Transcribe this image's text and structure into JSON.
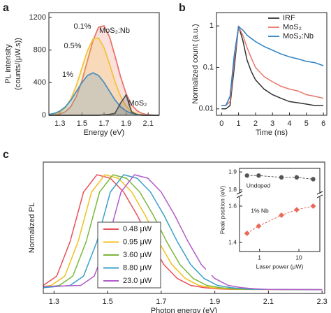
{
  "chart_data": [
    {
      "type": "area",
      "panel_label": "a",
      "xlabel": "Energy (eV)",
      "ylabel": [
        "PL intensity",
        "(counts/(μW.s))"
      ],
      "annotation": "MoS₂:Nb",
      "x": [
        1.2,
        1.25,
        1.3,
        1.35,
        1.4,
        1.45,
        1.5,
        1.55,
        1.6,
        1.65,
        1.7,
        1.75,
        1.8,
        1.85,
        1.9,
        1.95,
        2.0,
        2.05,
        2.1,
        2.15,
        2.2
      ],
      "series": [
        {
          "name": "0.1%",
          "color": "#e8756a",
          "values": [
            1,
            5,
            16,
            44,
            109,
            233,
            425,
            673,
            917,
            1081,
            1097,
            960,
            725,
            472,
            266,
            128,
            54,
            19,
            6,
            2,
            0
          ]
        },
        {
          "name": "0.5%",
          "color": "#f2c33c",
          "values": [
            4,
            14,
            38,
            94,
            202,
            368,
            582,
            793,
            935,
            949,
            830,
            627,
            408,
            230,
            111,
            47,
            16,
            5,
            2,
            0,
            0
          ]
        },
        {
          "name": "1%",
          "color": "#4a90c0",
          "values": [
            9,
            23,
            52,
            105,
            187,
            294,
            403,
            488,
            520,
            488,
            403,
            294,
            187,
            105,
            52,
            23,
            9,
            3,
            1,
            0,
            0
          ]
        },
        {
          "name": "MoS₂",
          "color": "#555555",
          "values": [
            0,
            0,
            0,
            0,
            0,
            0,
            0,
            0,
            0,
            0,
            5,
            10,
            25,
            150,
            250,
            40,
            5,
            0,
            0,
            0,
            0
          ]
        }
      ],
      "xlim": [
        1.2,
        2.2
      ],
      "xticks": [
        1.3,
        1.5,
        1.7,
        1.9,
        2.1
      ],
      "ylim": [
        0,
        1260
      ],
      "yticks": [
        0,
        400,
        800,
        1200
      ]
    },
    {
      "type": "line",
      "panel_label": "b",
      "xlabel": "Time (ns)",
      "ylabel": [
        "Normalized count (a.u.)"
      ],
      "ylog": true,
      "x": [
        0,
        0.25,
        0.5,
        0.75,
        1,
        1.25,
        1.5,
        1.75,
        2,
        2.5,
        3,
        3.5,
        4,
        4.5,
        5,
        5.5,
        6
      ],
      "series": [
        {
          "name": "IRF",
          "color": "#333333",
          "values": [
            0.01,
            0.01,
            0.012,
            0.1,
            1.0,
            0.45,
            0.15,
            0.08,
            0.05,
            0.03,
            0.022,
            0.018,
            0.015,
            0.014,
            0.013,
            0.012,
            0.012
          ]
        },
        {
          "name": "MoS₂",
          "color": "#e8756a",
          "values": [
            0.012,
            0.012,
            0.015,
            0.15,
            0.95,
            0.6,
            0.3,
            0.17,
            0.1,
            0.06,
            0.045,
            0.035,
            0.03,
            0.027,
            0.022,
            0.02,
            0.018
          ]
        },
        {
          "name": "MoS₂:Nb",
          "color": "#2a7fc0",
          "values": [
            0.012,
            0.012,
            0.02,
            0.2,
            0.95,
            0.8,
            0.6,
            0.5,
            0.42,
            0.32,
            0.26,
            0.21,
            0.18,
            0.16,
            0.14,
            0.13,
            0.11
          ]
        }
      ],
      "xlim": [
        -0.3,
        6.2
      ],
      "xticks": [
        0,
        1,
        2,
        3,
        4,
        5,
        6
      ],
      "ylim": [
        0.007,
        2.1
      ],
      "yticks": [
        0.01,
        0.1,
        1
      ],
      "legend": "top-right"
    },
    {
      "type": "line",
      "panel_label": "c",
      "xlabel": "Photon energy (eV)",
      "ylabel": [
        "Normalized PL"
      ],
      "series": [
        {
          "name": "0.48 μW",
          "color": "#e8505a",
          "x": [
            1.26,
            1.31,
            1.36,
            1.41,
            1.46,
            1.51,
            1.56,
            1.61,
            1.66,
            1.71,
            1.76,
            1.81,
            1.86,
            1.91,
            1.96,
            2.3
          ],
          "values": [
            0.04,
            0.12,
            0.42,
            0.85,
            1,
            0.97,
            0.85,
            0.65,
            0.42,
            0.22,
            0.1,
            0.04,
            0.02,
            0.01,
            0.005,
            0.003
          ]
        },
        {
          "name": "0.95 μW",
          "color": "#f0c020",
          "x": [
            1.26,
            1.29,
            1.34,
            1.39,
            1.44,
            1.49,
            1.54,
            1.59,
            1.64,
            1.69,
            1.74,
            1.79,
            1.84,
            1.89,
            1.94,
            1.99,
            2.3
          ],
          "values": [
            0.03,
            0.04,
            0.12,
            0.42,
            0.85,
            1,
            0.97,
            0.85,
            0.65,
            0.42,
            0.22,
            0.1,
            0.04,
            0.02,
            0.01,
            0.005,
            0.003
          ]
        },
        {
          "name": "3.60 μW",
          "color": "#7cb83a",
          "x": [
            1.26,
            1.32,
            1.37,
            1.42,
            1.47,
            1.52,
            1.57,
            1.62,
            1.67,
            1.72,
            1.77,
            1.82,
            1.87,
            1.92,
            1.97,
            2.02,
            2.3
          ],
          "values": [
            0.02,
            0.04,
            0.12,
            0.42,
            0.85,
            1,
            0.97,
            0.85,
            0.65,
            0.42,
            0.22,
            0.1,
            0.04,
            0.02,
            0.01,
            0.005,
            0.003
          ]
        },
        {
          "name": "8.80 μW",
          "color": "#3aa0c8",
          "x": [
            1.26,
            1.36,
            1.41,
            1.46,
            1.51,
            1.56,
            1.61,
            1.66,
            1.71,
            1.76,
            1.81,
            1.86,
            1.91,
            1.96,
            2.01,
            2.06,
            2.3
          ],
          "values": [
            0.02,
            0.04,
            0.12,
            0.42,
            0.85,
            1,
            0.97,
            0.85,
            0.65,
            0.42,
            0.22,
            0.1,
            0.04,
            0.02,
            0.01,
            0.005,
            0.003
          ]
        },
        {
          "name": "23.0 μW",
          "color": "#b05cc8",
          "x": [
            1.26,
            1.4,
            1.45,
            1.5,
            1.55,
            1.6,
            1.65,
            1.7,
            1.75,
            1.8,
            1.85,
            1.9,
            1.95,
            2.0,
            2.05,
            2.1,
            2.3
          ],
          "values": [
            0.03,
            0.04,
            0.12,
            0.42,
            0.85,
            1,
            0.97,
            0.85,
            0.65,
            0.42,
            0.22,
            0.1,
            0.04,
            0.02,
            0.01,
            0.005,
            0.003
          ]
        }
      ],
      "xlim": [
        1.26,
        2.31
      ],
      "xticks": [
        1.3,
        1.5,
        1.7,
        1.9,
        2.1,
        2.3
      ],
      "ylim": [
        -0.03,
        1.11
      ],
      "legend": "lower-left"
    },
    {
      "type": "scatter",
      "xlabel": "Laser power (μW)",
      "ylabel": [
        "Peak position (eV)"
      ],
      "xlog": true,
      "x": [
        0.48,
        0.95,
        3.6,
        8.8,
        23
      ],
      "series": [
        {
          "name": "Undoped",
          "color": "#555555",
          "marker": "circle",
          "values": [
            1.88,
            1.88,
            1.87,
            1.87,
            1.86
          ]
        },
        {
          "name": "1% Nb",
          "color": "#e86a5a",
          "marker": "diamond",
          "values": [
            1.45,
            1.49,
            1.55,
            1.58,
            1.6
          ]
        }
      ],
      "xlim": [
        0.31,
        34
      ],
      "xticks": [
        1,
        10
      ],
      "ylim": [
        1.35,
        1.65
      ],
      "yticks": [
        1.4,
        1.6
      ],
      "upper_ylim": [
        1.78,
        1.92
      ],
      "upper_yticks": [
        1.8,
        1.9
      ]
    }
  ]
}
